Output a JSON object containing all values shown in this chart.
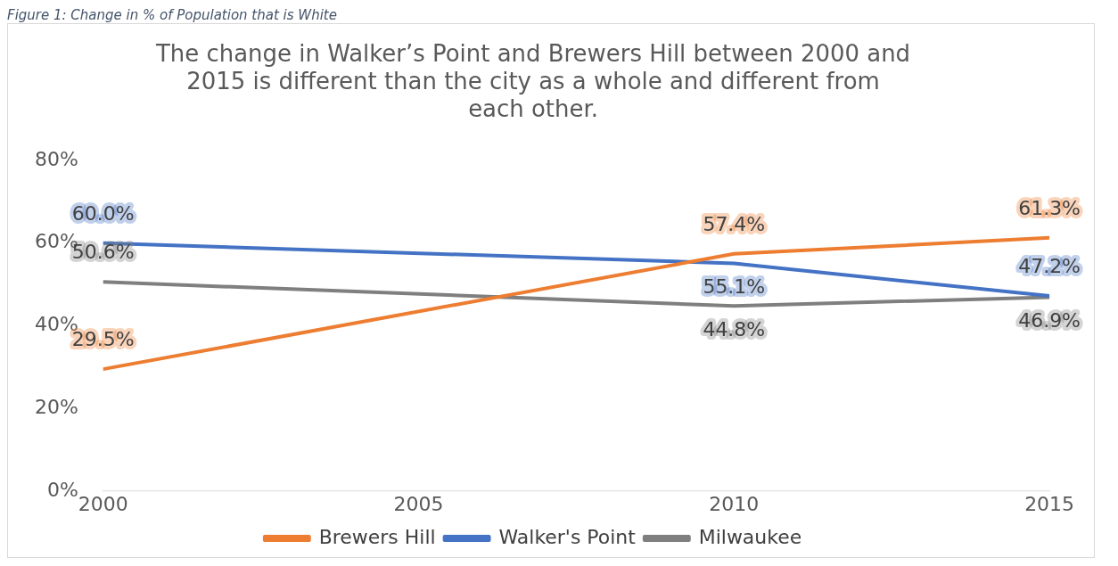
{
  "chart_data": {
    "type": "line",
    "title": "The change in Walker’s Point and Brewers Hill between 2000 and 2015 is different than the city as a whole and different from each other.",
    "annotations": [
      "Figure 1: Change in % of Population that is White"
    ],
    "x": [
      2000,
      2010,
      2015
    ],
    "xlim": [
      2000,
      2015
    ],
    "xticks": [
      2000,
      2005,
      2010,
      2015
    ],
    "ylim": [
      0,
      80
    ],
    "yticks": [
      {
        "value": 0,
        "label": "0%"
      },
      {
        "value": 20,
        "label": "20%"
      },
      {
        "value": 40,
        "label": "40%"
      },
      {
        "value": 60,
        "label": "60%"
      },
      {
        "value": 80,
        "label": "80%"
      }
    ],
    "series": [
      {
        "name": "Brewers Hill",
        "color": "#ed7d31",
        "values": [
          29.5,
          57.4,
          61.3
        ],
        "value_labels": [
          "29.5%",
          "57.4%",
          "61.3%"
        ]
      },
      {
        "name": "Walker's Point",
        "color": "#4472c4",
        "values": [
          60.0,
          55.1,
          47.2
        ],
        "value_labels": [
          "60.0%",
          "55.1%",
          "47.2%"
        ]
      },
      {
        "name": "Milwaukee",
        "color": "#7f7f7f",
        "values": [
          50.6,
          44.8,
          46.9
        ],
        "value_labels": [
          "50.6%",
          "44.8%",
          "46.9%"
        ]
      }
    ],
    "legend": "bottom",
    "grid": false,
    "marker": "none",
    "line_style": "solid"
  }
}
